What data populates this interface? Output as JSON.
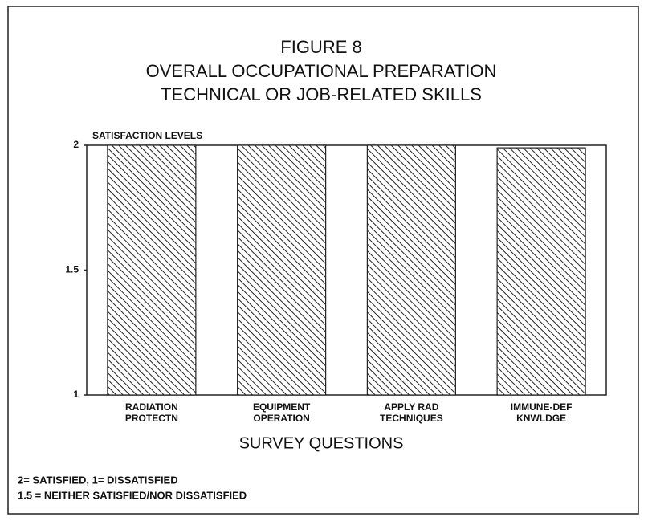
{
  "chart_data": {
    "type": "bar",
    "title": [
      "FIGURE 8",
      "OVERALL OCCUPATIONAL PREPARATION",
      "TECHNICAL OR JOB-RELATED SKILLS"
    ],
    "y_label": "SATISFACTION LEVELS",
    "x_label": "SURVEY QUESTIONS",
    "categories": [
      [
        "RADIATION",
        "PROTECTN"
      ],
      [
        "EQUIPMENT",
        "OPERATION"
      ],
      [
        "APPLY RAD",
        "TECHNIQUES"
      ],
      [
        "IMMUNE-DEF",
        "KNWLDGE"
      ]
    ],
    "values": [
      2,
      2,
      2,
      1.99
    ],
    "ylim": [
      1,
      2
    ],
    "yticks": [
      1,
      1.5,
      2
    ],
    "notes": [
      "2= SATISFIED, 1= DISSATISFIED",
      "1.5 = NEITHER SATISFIED/NOR DISSATISFIED"
    ],
    "color": "#222222"
  }
}
